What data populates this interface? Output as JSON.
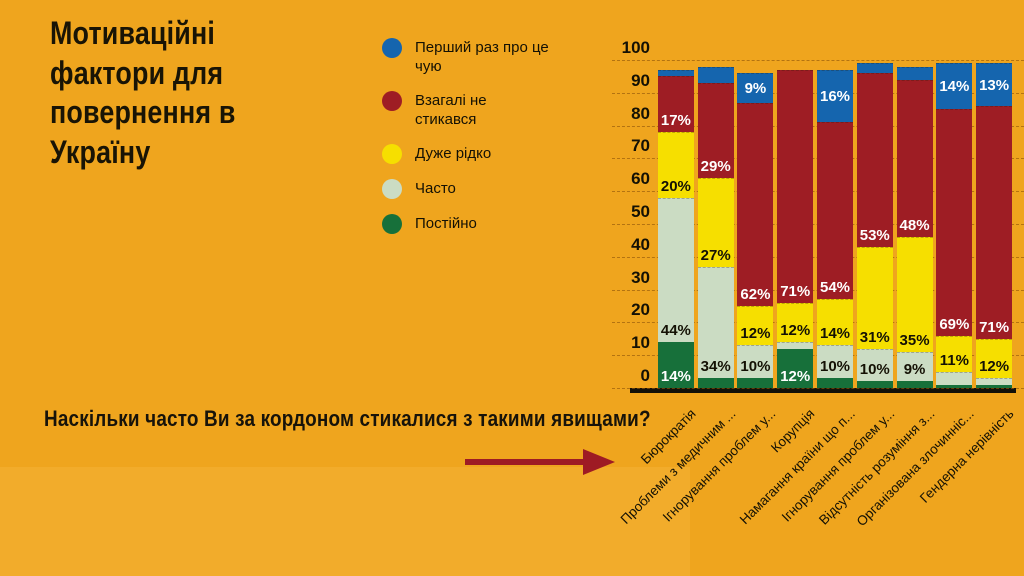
{
  "title": "Мотиваційні фактори для повернення в Україну",
  "question": "Наскільки часто Ви за кордоном стикалися з такими явищами?",
  "colors": {
    "background": "#EFA51E",
    "footer_band": "#F2AC2B",
    "arrow": "#9E1B24",
    "axis": "#121008"
  },
  "legend": [
    {
      "label": "Перший раз про це чую",
      "color": "#1565AE"
    },
    {
      "label": "Взагалі не стикався",
      "color": "#9E1D24"
    },
    {
      "label": "Дуже рідко",
      "color": "#F6DF00"
    },
    {
      "label": "Часто",
      "color": "#CBDCC3"
    },
    {
      "label": "Постійно",
      "color": "#17703A"
    }
  ],
  "chart_data": {
    "type": "bar",
    "stacked": true,
    "ylim": [
      0,
      100
    ],
    "yticks": [
      0,
      10,
      20,
      30,
      40,
      50,
      60,
      70,
      80,
      90,
      100
    ],
    "grid": true,
    "legend_position": "left",
    "categories": [
      "Бюрократія",
      "Проблеми з медичним ...",
      "Ігнорування проблем у...",
      "Корупція",
      "Намагання країни що п...",
      "Ігнорування проблем у...",
      "Відсутність розуміння з...",
      "Організована злочинніс...",
      "Гендерна нерівність"
    ],
    "series": [
      {
        "name": "Постійно",
        "color": "#17703A",
        "label_color": "#ffffff",
        "label_align": "bottom",
        "values": [
          14,
          3,
          3,
          12,
          3,
          2,
          2,
          1,
          1
        ],
        "labels": [
          "14%",
          "",
          "",
          "12%",
          "",
          "",
          "",
          "",
          ""
        ]
      },
      {
        "name": "Часто",
        "color": "#CBDCC3",
        "label_color": "#141104",
        "label_align": "bottom",
        "values": [
          44,
          34,
          10,
          2,
          10,
          10,
          9,
          4,
          2
        ],
        "labels": [
          "44%",
          "34%",
          "10%",
          "",
          "10%",
          "10%",
          "9%",
          "",
          ""
        ]
      },
      {
        "name": "Дуже рідко",
        "color": "#F6DF00",
        "label_color": "#141104",
        "label_align": "bottom",
        "values": [
          20,
          27,
          12,
          12,
          14,
          31,
          35,
          11,
          12
        ],
        "labels": [
          "20%",
          "27%",
          "12%",
          "12%",
          "14%",
          "31%",
          "35%",
          "11%",
          "12%"
        ]
      },
      {
        "name": "Взагалі не стикався",
        "color": "#9E1D24",
        "label_color": "#ffffff",
        "label_align": "bottom",
        "values": [
          17,
          29,
          62,
          71,
          54,
          53,
          48,
          69,
          71
        ],
        "labels": [
          "17%",
          "29%",
          "62%",
          "71%",
          "54%",
          "53%",
          "48%",
          "69%",
          "71%"
        ]
      },
      {
        "name": "Перший раз про це чую",
        "color": "#1565AE",
        "label_color": "#ffffff",
        "label_align": "center",
        "values": [
          2,
          5,
          9,
          0,
          16,
          3,
          4,
          14,
          13
        ],
        "labels": [
          "",
          "",
          "9%",
          "",
          "16%",
          "",
          "",
          "14%",
          "13%"
        ]
      }
    ]
  }
}
